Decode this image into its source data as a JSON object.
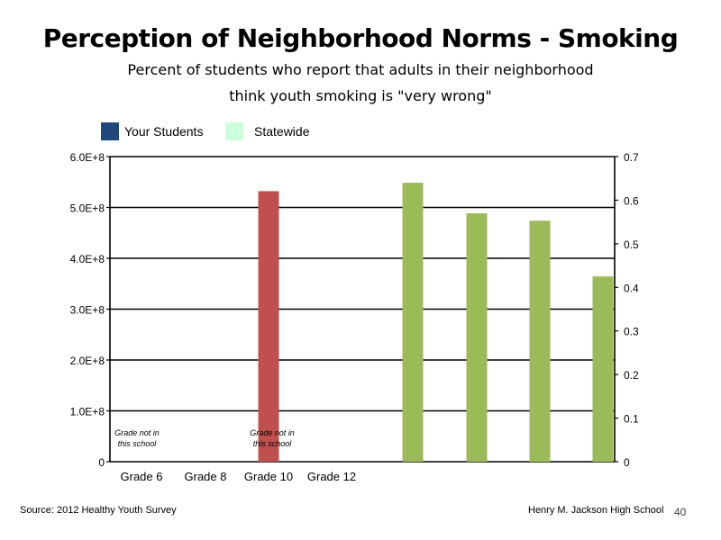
{
  "chart_data": {
    "type": "bar",
    "title": "Perception of Neighborhood Norms - Smoking",
    "subtitle_lines": [
      "Percent of students who report that adults in their neighborhood",
      "think youth smoking is \"very wrong\""
    ],
    "categories": [
      "Grade 6",
      "Grade 8",
      "Grade 10",
      "Grade 12"
    ],
    "legend": [
      {
        "name": "Your Students",
        "color": "#1f497d"
      },
      {
        "name": "Statewide",
        "color": "#ccffdd"
      }
    ],
    "legend_placement": "top-left",
    "left_axis": {
      "ylim": [
        0,
        600000000
      ],
      "ticks": [
        "0",
        "1.0E+8",
        "2.0E+8",
        "3.0E+8",
        "4.0E+8",
        "5.0E+8",
        "6.0E+8"
      ]
    },
    "right_axis": {
      "ylim": [
        0,
        0.7
      ],
      "ticks": [
        "0",
        "0.1",
        "0.2",
        "0.3",
        "0.4",
        "0.5",
        "0.6",
        "0.7"
      ]
    },
    "series": [
      {
        "axis": "left",
        "color": "#c0504d",
        "category": "Grade 10",
        "value": 532000000
      },
      {
        "axis": "right",
        "color": "#9bbb59",
        "values": [
          0.64,
          0.57,
          0.553,
          0.425
        ]
      }
    ],
    "annotations": [
      {
        "category": "Grade 6",
        "lines": [
          "Grade not in",
          "this school"
        ]
      },
      {
        "category": "Grade 10",
        "lines": [
          "Grade not in",
          "this school"
        ]
      }
    ],
    "grid": true
  },
  "footer": {
    "source": "Source: 2012 Healthy Youth Survey",
    "school": "Henry M. Jackson High School",
    "page": "40"
  }
}
